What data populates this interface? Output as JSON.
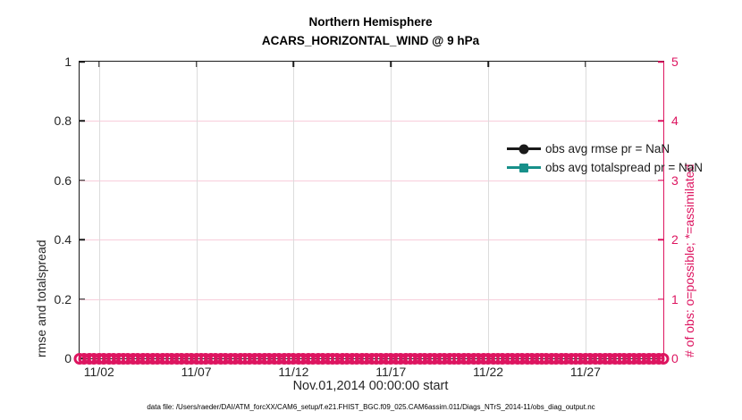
{
  "figure": {
    "caption": "data file: /Users/raeder/DAI/ATM_forcXX/CAM6_setup/f.e21.FHIST_BGC.f09_025.CAM6assim.011/Diags_NTrS_2014-11/obs_diag_output.nc"
  },
  "colors": {
    "obs_count_pink": "#dd1560",
    "totalspread_teal": "#17908a",
    "rmse_black": "#1a1a1a",
    "grid_gray": "#dcdcdc",
    "grid_pink": "#f8cddb"
  },
  "legend": {
    "items": [
      {
        "label": "obs avg rmse pr = NaN",
        "color": "#1a1a1a",
        "marker": "circle"
      },
      {
        "label": "obs avg totalspread pr = NaN",
        "color": "#17908a",
        "marker": "square"
      }
    ]
  },
  "chart_data": {
    "type": "line",
    "title": "Northern Hemisphere",
    "subtitle": "ACARS_HORIZONTAL_WIND @ 9 hPa",
    "xlabel": "Nov.01,2014 00:00:00 start",
    "ylabel_left": "rmse and totalspread",
    "ylabel_right": "# of obs: o=possible; *=assimilated",
    "ylim_left": [
      0,
      1
    ],
    "ylim_right": [
      0,
      5
    ],
    "x_range_days": [
      0,
      30
    ],
    "x_tick_labels": [
      "11/02",
      "11/07",
      "11/12",
      "11/17",
      "11/22",
      "11/27"
    ],
    "x_tick_days": [
      1,
      6,
      11,
      16,
      21,
      26
    ],
    "left_tick_labels": [
      "0",
      "0.2",
      "0.4",
      "0.6",
      "0.8",
      "1"
    ],
    "right_tick_labels": [
      "0",
      "1",
      "2",
      "3",
      "4",
      "5"
    ],
    "grid": true,
    "legend_position": "upper right inside, no box",
    "series": [
      {
        "name": "obs avg rmse pr = NaN",
        "axis": "left",
        "color": "#1a1a1a",
        "marker": "filled-circle",
        "values": "NaN - nothing plotted"
      },
      {
        "name": "obs avg totalspread pr = NaN",
        "axis": "left",
        "color": "#17908a",
        "marker": "filled-square",
        "values": "NaN - nothing plotted"
      },
      {
        "name": "# of obs possible",
        "axis": "right",
        "color": "#dd1560",
        "marker": "open-circle",
        "y_constant": 0,
        "n_points": 121
      }
    ]
  }
}
